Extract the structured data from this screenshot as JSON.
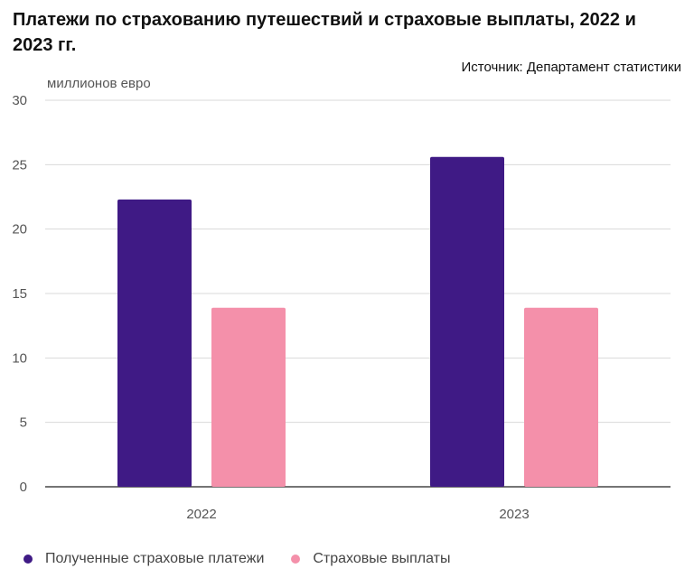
{
  "title": "Платежи по страхованию путешествий и страховые выплаты, 2022 и 2023 гг.",
  "source": "Источник: Департамент статистики",
  "colors": {
    "series_1": "#3f1a85",
    "series_2": "#f490aa",
    "grid": "#d9d9d9",
    "axis": "#222222"
  },
  "chart_data": {
    "type": "bar",
    "title": "Платежи по страхованию путешествий и страховые выплаты, 2022 и 2023 гг.",
    "ylabel": "миллионов евро",
    "xlabel": "",
    "categories": [
      "2022",
      "2023"
    ],
    "series": [
      {
        "name": "Полученные страховые платежи",
        "values": [
          22.3,
          25.6
        ],
        "color": "#3f1a85"
      },
      {
        "name": "Страховые выплаты",
        "values": [
          13.9,
          13.9
        ],
        "color": "#f490aa"
      }
    ],
    "ylim": [
      0,
      30
    ],
    "yticks": [
      0,
      5,
      10,
      15,
      20,
      25,
      30
    ],
    "grid": true,
    "legend_position": "bottom-left"
  }
}
